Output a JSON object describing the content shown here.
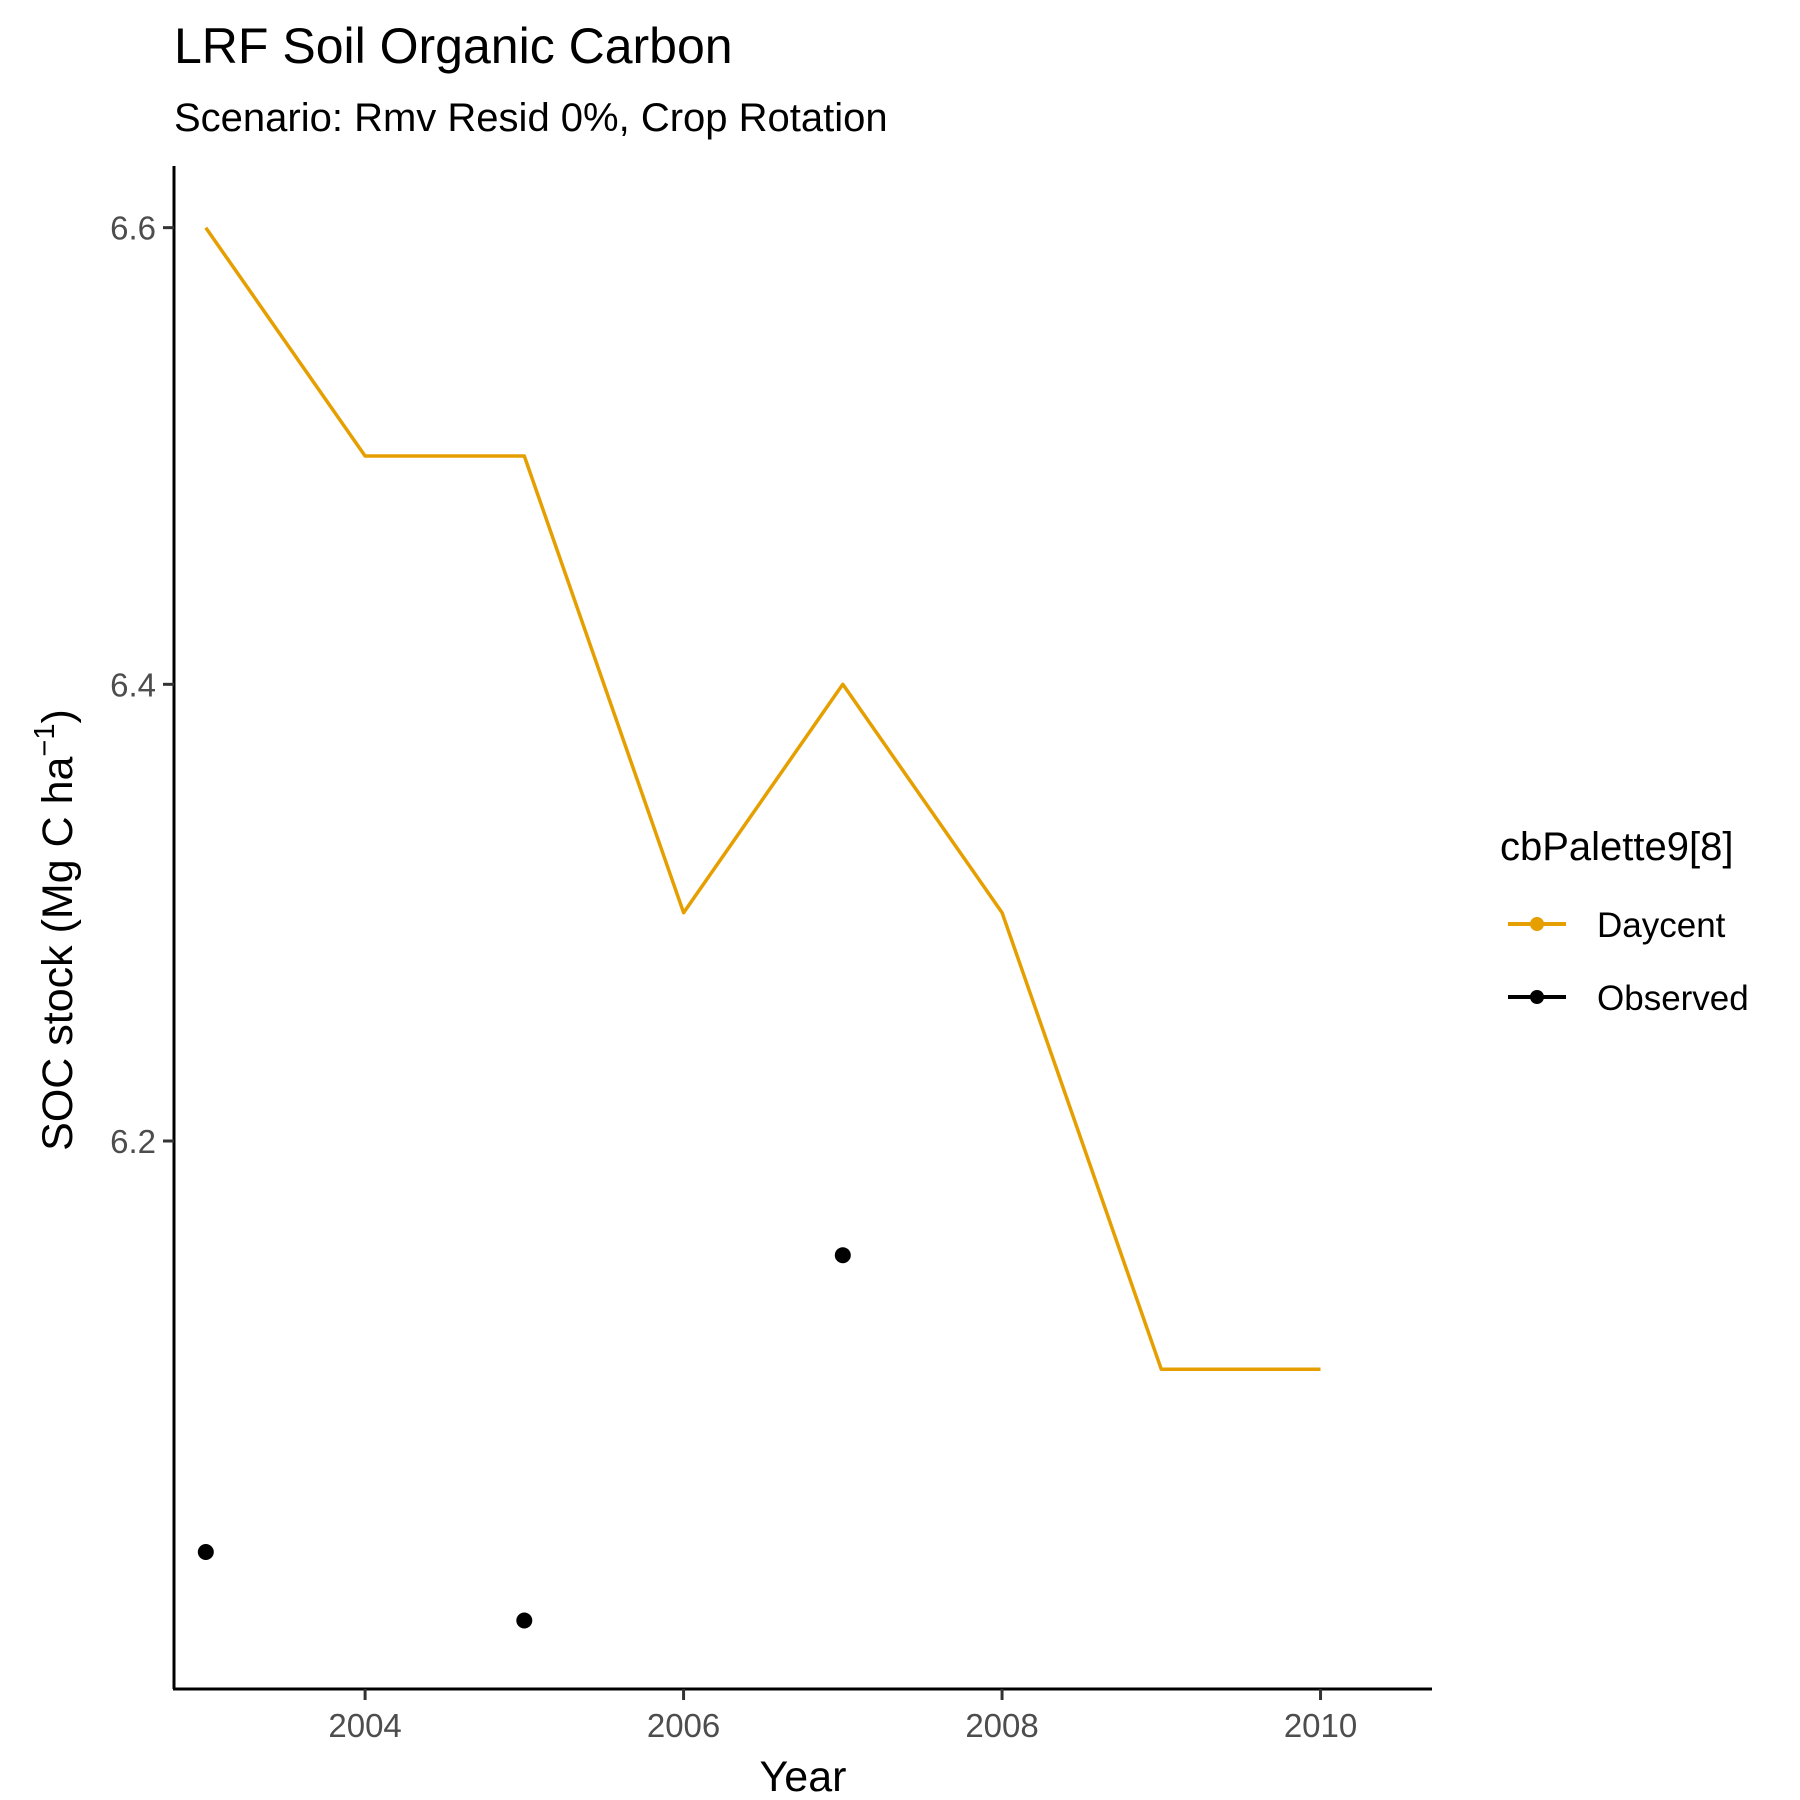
{
  "chart_data": {
    "type": "line",
    "title": "LRF Soil Organic Carbon",
    "subtitle": "Scenario: Rmv Resid 0%, Crop Rotation",
    "xlabel": "Year",
    "ylabel_main": "SOC stock (Mg C ha",
    "ylabel_sup": "−1",
    "ylabel_close": ")",
    "xlim": [
      2002.8,
      2010.7
    ],
    "ylim": [
      5.96,
      6.627
    ],
    "x_ticks": [
      2004,
      2006,
      2008,
      2010
    ],
    "x_tick_labels": [
      "2004",
      "2006",
      "2008",
      "2010"
    ],
    "y_ticks": [
      6.2,
      6.4,
      6.6
    ],
    "y_tick_labels": [
      "6.2",
      "6.4",
      "6.6"
    ],
    "grid": false,
    "legend": {
      "title": "cbPalette9[8]",
      "position": "right",
      "entries": [
        "Daycent",
        "Observed"
      ]
    },
    "series": [
      {
        "name": "Daycent",
        "kind": "line",
        "color": "#E69F00",
        "x": [
          2003,
          2004,
          2005,
          2006,
          2007,
          2008,
          2009,
          2010
        ],
        "y": [
          6.6,
          6.5,
          6.5,
          6.3,
          6.4,
          6.3,
          6.1,
          6.1
        ]
      },
      {
        "name": "Observed",
        "kind": "points",
        "color": "#000000",
        "x": [
          2003,
          2005,
          2007
        ],
        "y": [
          6.02,
          5.99,
          6.15
        ]
      }
    ]
  }
}
